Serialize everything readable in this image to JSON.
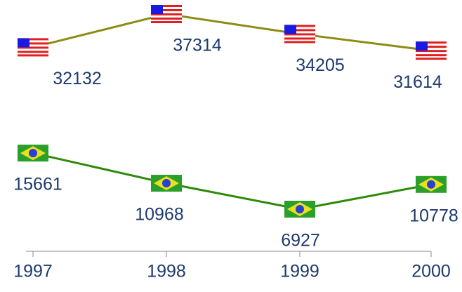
{
  "chart_data": {
    "type": "line",
    "categories": [
      "1997",
      "1998",
      "1999",
      "2000"
    ],
    "series": [
      {
        "name": "USA",
        "color": "#8c8c14",
        "values": [
          32132,
          37314,
          34205,
          31614
        ]
      },
      {
        "name": "Brazil",
        "color": "#2e8a0a",
        "values": [
          15661,
          10968,
          6927,
          10778
        ]
      }
    ]
  }
}
